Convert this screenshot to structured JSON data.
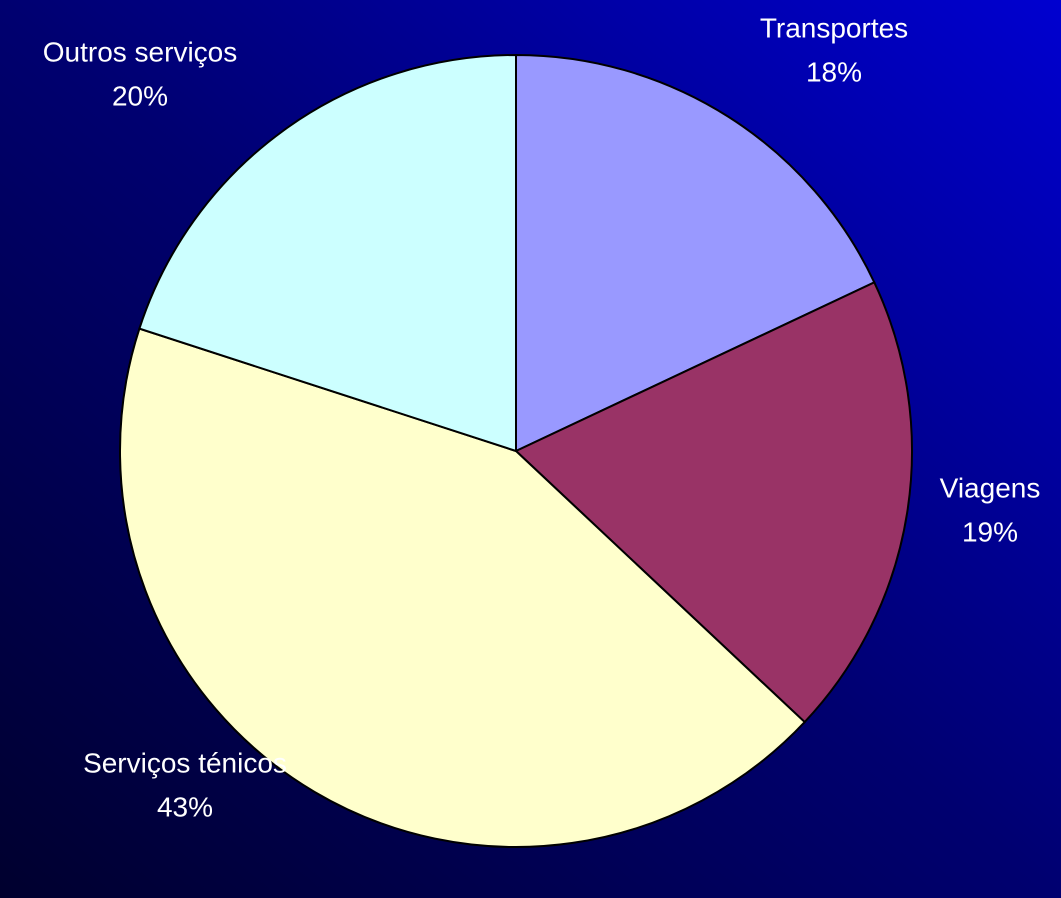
{
  "chart_data": {
    "type": "pie",
    "categories": [
      "Transportes",
      "Viagens",
      "Serviços ténicos",
      "Outros serviços"
    ],
    "values": [
      18,
      19,
      43,
      20
    ],
    "value_labels": [
      "18%",
      "19%",
      "43%",
      "20%"
    ],
    "colors": [
      "#9999ff",
      "#993366",
      "#ffffcc",
      "#ccffff"
    ]
  }
}
